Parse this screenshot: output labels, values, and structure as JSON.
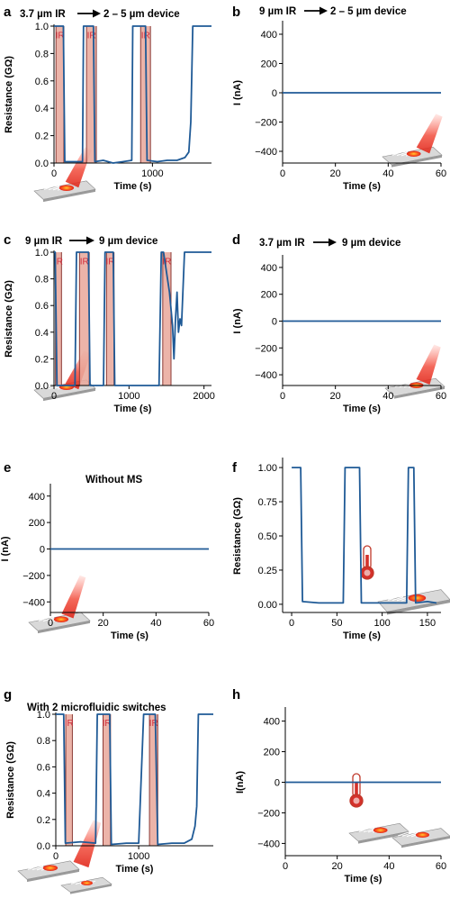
{
  "colors": {
    "curve": "#1f5a96",
    "ir_band": "#e9a79a",
    "ir_edge": "#8b3a35",
    "ir_label": "#d12a3a",
    "device": "#b9b9b9",
    "hot": "#e83a2a"
  },
  "chart_data": [
    {
      "panel": "a",
      "type": "line",
      "title_left": "3.7 µm IR",
      "title_right": "2 – 5 µm device",
      "xlabel": "Time (s)",
      "ylabel": "Resistance (GΩ)",
      "xlim": [
        0,
        1600
      ],
      "ylim": [
        0,
        1.0
      ],
      "xticks": [
        0,
        1000
      ],
      "yticks": [
        0.0,
        0.2,
        0.4,
        0.6,
        0.8,
        1.0
      ],
      "ytick_labels": [
        "0.0",
        "0.2",
        "0.4",
        "0.6",
        "0.8",
        "1.0"
      ],
      "ir_label": "IR",
      "ir_intervals": [
        [
          20,
          100
        ],
        [
          330,
          430
        ],
        [
          880,
          980
        ]
      ],
      "series": [
        {
          "x": [
            0,
            95,
            110,
            200,
            290,
            300,
            400,
            415,
            500,
            600,
            700,
            790,
            800,
            930,
            945,
            1050,
            1150,
            1250,
            1330,
            1370,
            1390,
            1410,
            1600
          ],
          "y": [
            1.0,
            1.0,
            0.01,
            0.01,
            0.01,
            1.0,
            1.0,
            0.01,
            0.02,
            0.0,
            0.01,
            0.02,
            1.0,
            1.0,
            0.02,
            0.01,
            0.02,
            0.02,
            0.04,
            0.08,
            0.3,
            1.0,
            1.0
          ]
        }
      ]
    },
    {
      "panel": "b",
      "type": "line",
      "title_left": "9 µm IR",
      "title_right": "2 – 5 µm device",
      "xlabel": "Time (s)",
      "ylabel": "I (nA)",
      "xlim": [
        0,
        60
      ],
      "ylim": [
        -480,
        480
      ],
      "xticks": [
        0,
        20,
        40,
        60
      ],
      "yticks": [
        -400,
        -200,
        0,
        200,
        400
      ],
      "ytick_labels": [
        "−400",
        "−200",
        "0",
        "200",
        "400"
      ],
      "series": [
        {
          "x": [
            0,
            60
          ],
          "y": [
            0,
            0
          ]
        }
      ]
    },
    {
      "panel": "c",
      "type": "line",
      "title_left": "9 µm IR",
      "title_right": "9 µm device",
      "xlabel": "Time (s)",
      "ylabel": "Resistance (GΩ)",
      "xlim": [
        0,
        2100
      ],
      "ylim": [
        0,
        1.0
      ],
      "xticks": [
        0,
        1000,
        2000
      ],
      "yticks": [
        0.0,
        0.2,
        0.4,
        0.6,
        0.8,
        1.0
      ],
      "ytick_labels": [
        "0.0",
        "0.2",
        "0.4",
        "0.6",
        "0.8",
        "1.0"
      ],
      "ir_label": "IR",
      "ir_intervals": [
        [
          20,
          100
        ],
        [
          340,
          470
        ],
        [
          700,
          800
        ],
        [
          1450,
          1560
        ]
      ],
      "series": [
        {
          "x": [
            0,
            15,
            40,
            280,
            300,
            460,
            480,
            660,
            680,
            790,
            810,
            1000,
            1200,
            1400,
            1430,
            1460,
            1540,
            1580,
            1600,
            1620,
            1640,
            1660,
            1680,
            1700,
            1740,
            1760,
            2100
          ],
          "y": [
            1.0,
            1.0,
            0.0,
            0.0,
            1.0,
            1.0,
            0.0,
            0.0,
            1.0,
            1.0,
            0.0,
            0.0,
            0.0,
            0.0,
            1.0,
            1.0,
            0.7,
            0.45,
            0.2,
            0.5,
            0.7,
            0.4,
            0.5,
            0.45,
            1.0,
            1.0,
            1.0
          ]
        }
      ]
    },
    {
      "panel": "d",
      "type": "line",
      "title_left": "3.7 µm IR",
      "title_right": "9 µm device",
      "xlabel": "Time (s)",
      "ylabel": "I (nA)",
      "xlim": [
        0,
        60
      ],
      "ylim": [
        -480,
        480
      ],
      "xticks": [
        0,
        20,
        40,
        60
      ],
      "yticks": [
        -400,
        -200,
        0,
        200,
        400
      ],
      "ytick_labels": [
        "−400",
        "−200",
        "0",
        "200",
        "400"
      ],
      "series": [
        {
          "x": [
            0,
            60
          ],
          "y": [
            0,
            0
          ]
        }
      ]
    },
    {
      "panel": "e",
      "type": "line",
      "title": "Without MS",
      "xlabel": "Time (s)",
      "ylabel": "I (nA)",
      "xlim": [
        0,
        60
      ],
      "ylim": [
        -480,
        480
      ],
      "xticks": [
        0,
        20,
        40,
        60
      ],
      "yticks": [
        -400,
        -200,
        0,
        200,
        400
      ],
      "ytick_labels": [
        "−400",
        "−200",
        "0",
        "200",
        "400"
      ],
      "series": [
        {
          "x": [
            0,
            60
          ],
          "y": [
            0,
            0
          ]
        }
      ]
    },
    {
      "panel": "f",
      "type": "line",
      "xlabel": "Time (s)",
      "ylabel": "Resistance (GΩ)",
      "xlim": [
        -10,
        165
      ],
      "ylim": [
        -0.06,
        1.06
      ],
      "xticks": [
        0,
        50,
        100,
        150
      ],
      "yticks": [
        0.0,
        0.25,
        0.5,
        0.75,
        1.0
      ],
      "ytick_labels": [
        "0.00",
        "0.25",
        "0.50",
        "0.75",
        "1.00"
      ],
      "series": [
        {
          "x": [
            0,
            10,
            12,
            30,
            50,
            57,
            59,
            75,
            77,
            100,
            120,
            127,
            129,
            135,
            137,
            150,
            160
          ],
          "y": [
            1.0,
            1.0,
            0.02,
            0.01,
            0.01,
            0.01,
            1.0,
            1.0,
            0.01,
            0.01,
            0.01,
            0.01,
            1.0,
            1.0,
            0.01,
            0.02,
            0.01
          ]
        }
      ]
    },
    {
      "panel": "g",
      "type": "line",
      "title": "With 2 microfluidic switches",
      "xlabel": "Time (s)",
      "ylabel": "Resistance (GΩ)",
      "xlim": [
        0,
        1900
      ],
      "ylim": [
        0,
        1.0
      ],
      "xticks": [
        0,
        1000
      ],
      "yticks": [
        0.0,
        0.2,
        0.4,
        0.6,
        0.8,
        1.0
      ],
      "ytick_labels": [
        "0.0",
        "0.2",
        "0.4",
        "0.6",
        "0.8",
        "1.0"
      ],
      "ir_label": "IR",
      "ir_intervals": [
        [
          120,
          200
        ],
        [
          570,
          660
        ],
        [
          1130,
          1230
        ]
      ],
      "series": [
        {
          "x": [
            0,
            95,
            115,
            300,
            480,
            500,
            650,
            670,
            850,
            1000,
            1060,
            1080,
            1200,
            1230,
            1400,
            1550,
            1640,
            1680,
            1700,
            1720,
            1900
          ],
          "y": [
            1.0,
            1.0,
            0.02,
            0.03,
            0.02,
            1.0,
            1.0,
            0.01,
            0.02,
            0.02,
            1.0,
            1.0,
            1.0,
            0.01,
            0.02,
            0.02,
            0.05,
            0.15,
            0.3,
            1.0,
            1.0
          ]
        }
      ]
    },
    {
      "panel": "h",
      "type": "line",
      "xlabel": "Time (s)",
      "ylabel": "I(nA)",
      "xlim": [
        0,
        60
      ],
      "ylim": [
        -480,
        480
      ],
      "xticks": [
        0,
        20,
        40,
        60
      ],
      "yticks": [
        -400,
        -200,
        0,
        200,
        400
      ],
      "ytick_labels": [
        "−400",
        "−200",
        "0",
        "200",
        "400"
      ],
      "series": [
        {
          "x": [
            0,
            60
          ],
          "y": [
            0,
            0
          ]
        }
      ]
    }
  ]
}
